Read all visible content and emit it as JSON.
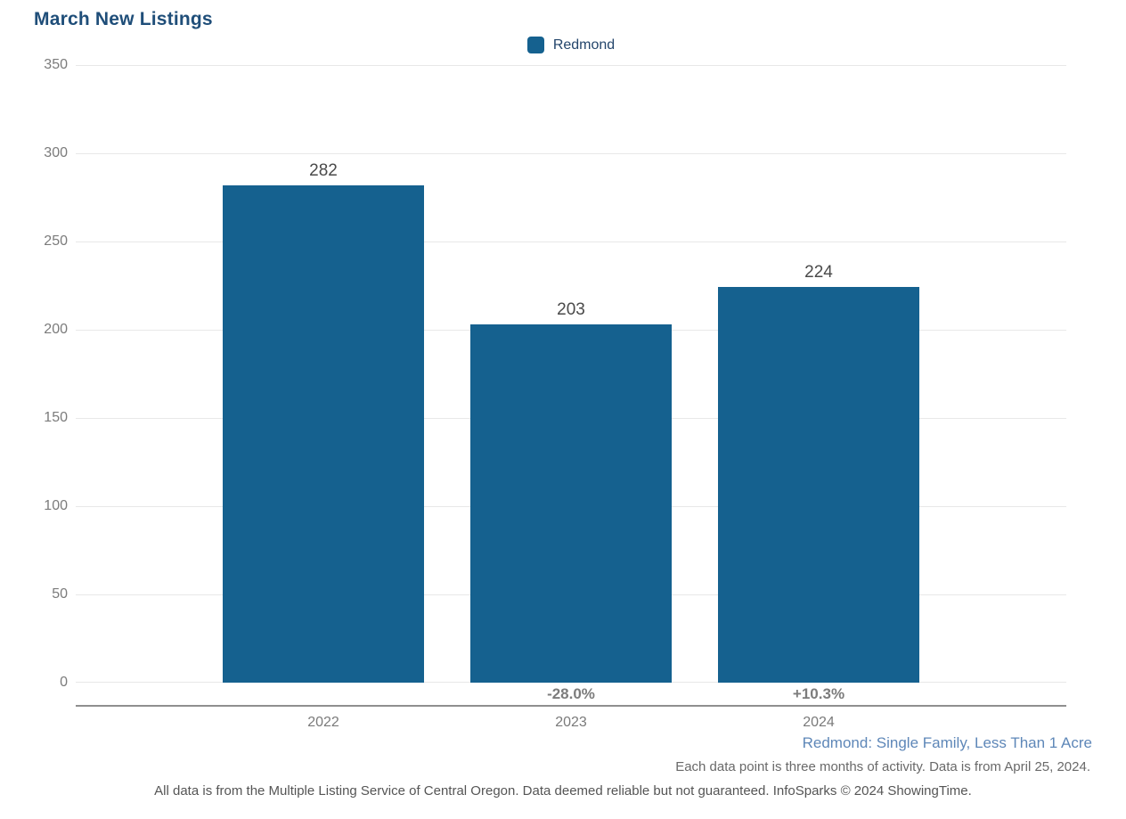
{
  "page": {
    "title": "March New Listings"
  },
  "legend": {
    "label": "Redmond",
    "swatch_color": "#15618F",
    "position": "top-center"
  },
  "chart_data": {
    "type": "bar",
    "title": "March New Listings",
    "categories": [
      "2022",
      "2023",
      "2024"
    ],
    "series": [
      {
        "name": "Redmond",
        "values": [
          282,
          203,
          224
        ]
      }
    ],
    "value_labels": [
      "282",
      "203",
      "224"
    ],
    "change_labels": [
      "",
      "-28.0%",
      "+10.3%"
    ],
    "xlabel": "",
    "ylabel": "",
    "ylim": [
      0,
      350
    ],
    "yticks": [
      0,
      50,
      100,
      150,
      200,
      250,
      300,
      350
    ],
    "grid": true,
    "legend_position": "top-center",
    "bar_color": "#15618F",
    "bar_centers_pct": [
      25,
      50,
      75
    ],
    "bar_width_pct": 20.32
  },
  "footnotes": {
    "segment": "Redmond: Single Family, Less Than 1 Acre",
    "data_note": "Each data point is three months of activity. Data is from April 25, 2024.",
    "source": "All data is from the Multiple Listing Service of Central Oregon. Data deemed reliable but not guaranteed. InfoSparks © 2024 ShowingTime."
  },
  "colors": {
    "bar": "#15618F",
    "title": "#1F4E79",
    "legend_text": "#23456B",
    "segment_note": "#5E87B8",
    "gridline": "#E8E8E8",
    "axis_line": "#8F8F8F",
    "tick_text": "#7B7B7B",
    "value_label": "#4A4A4A",
    "change_label": "#7C7C7C"
  }
}
